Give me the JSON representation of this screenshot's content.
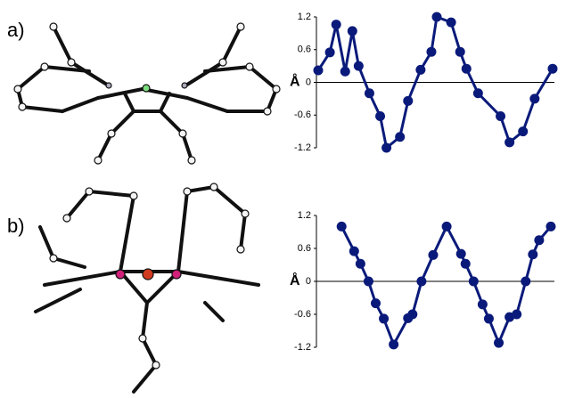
{
  "chart_data": [
    {
      "type": "line",
      "panel_label": "a)",
      "ylabel": "Å",
      "color": "#0a1a7a",
      "x": [
        0.2,
        1.5,
        2.2,
        3.2,
        4,
        4.7,
        5.9,
        7.1,
        7.8,
        9.3,
        10.2,
        11.6,
        12.8,
        13.4,
        15,
        16,
        16.7,
        18,
        20.5,
        21.5,
        23,
        24.3,
        26.3
      ],
      "values": [
        0.22,
        0.55,
        1.06,
        0.2,
        0.94,
        0.3,
        -0.2,
        -0.62,
        -1.2,
        -1.0,
        -0.34,
        0.23,
        0.56,
        1.2,
        1.1,
        0.56,
        0.25,
        -0.2,
        -0.62,
        -1.1,
        -0.9,
        -0.3,
        0.25
      ],
      "xlim": [
        0,
        26.5
      ],
      "ylim": [
        -1.2,
        1.2
      ],
      "yticks": [
        1.2,
        0.6,
        0,
        -0.6,
        -1.2
      ]
    },
    {
      "type": "line",
      "panel_label": "b)",
      "ylabel": "Å",
      "color": "#0a1a7a",
      "x": [
        2.8,
        4.2,
        4.9,
        5.8,
        6.6,
        7.5,
        8.6,
        10.2,
        10.7,
        11.7,
        13,
        14.5,
        16.1,
        16.6,
        17.5,
        18.5,
        19.2,
        20.3,
        21.5,
        22.3,
        23.3,
        24.1,
        24.8,
        26.1
      ],
      "values": [
        1.0,
        0.55,
        0.32,
        0,
        -0.4,
        -0.68,
        -1.15,
        -0.67,
        -0.6,
        0,
        0.48,
        1.0,
        0.5,
        0.32,
        0,
        -0.42,
        -0.68,
        -1.12,
        -0.65,
        -0.6,
        0,
        0.49,
        0.75,
        1.0
      ],
      "xlim": [
        0,
        26.5
      ],
      "ylim": [
        -1.2,
        1.2
      ],
      "yticks": [
        1.2,
        0.6,
        0,
        -0.6,
        -1.2
      ]
    }
  ]
}
